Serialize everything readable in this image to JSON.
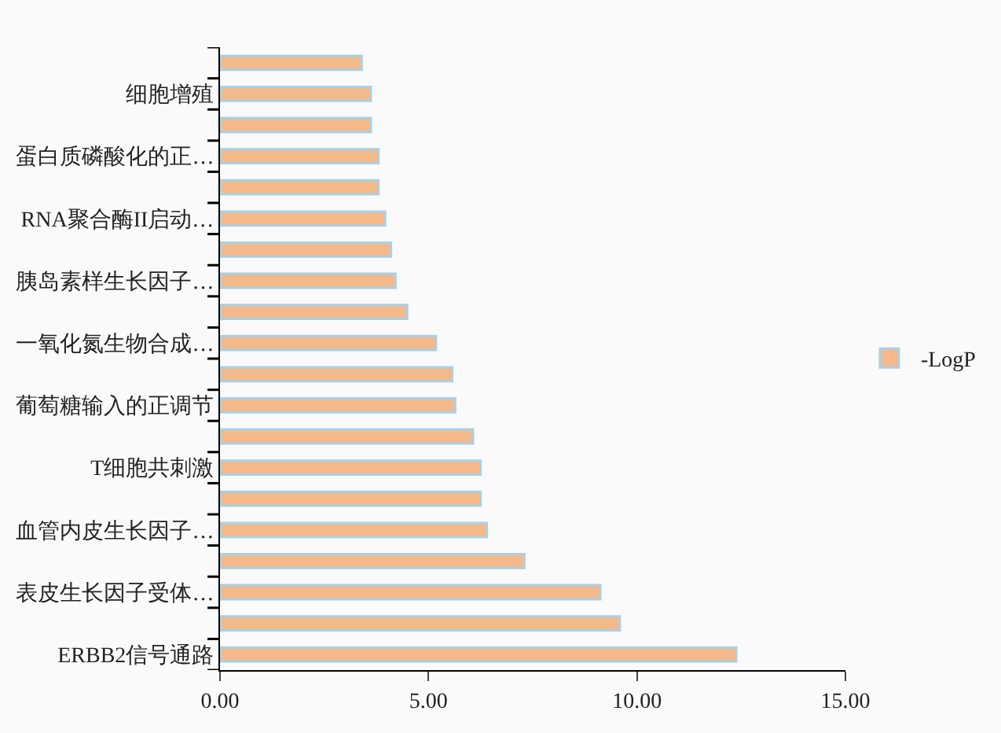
{
  "chart_data": {
    "type": "bar",
    "orientation": "horizontal",
    "categories": [
      null,
      "细胞增殖",
      null,
      "蛋白质磷酸化的正…",
      null,
      "RNA聚合酶II启动…",
      null,
      "胰岛素样生长因子…",
      null,
      "一氧化氮生物合成…",
      null,
      "葡萄糖输入的正调节",
      null,
      "T细胞共刺激",
      null,
      "血管内皮生长因子…",
      null,
      "表皮生长因子受体…",
      null,
      "ERBB2信号通路"
    ],
    "series": [
      {
        "name": "-LogP",
        "color": "#f4b98a",
        "values": [
          3.4,
          3.62,
          3.62,
          3.8,
          3.8,
          3.96,
          4.1,
          4.21,
          4.49,
          5.18,
          5.57,
          5.64,
          6.07,
          6.25,
          6.25,
          6.4,
          7.3,
          9.12,
          9.59,
          12.38
        ]
      }
    ],
    "xlim": [
      0,
      15
    ],
    "xticks": [
      {
        "value": 0,
        "label": "0.00"
      },
      {
        "value": 5,
        "label": "5.00"
      },
      {
        "value": 10,
        "label": "10.00"
      },
      {
        "value": 15,
        "label": "15.00"
      }
    ],
    "legend": "right"
  }
}
